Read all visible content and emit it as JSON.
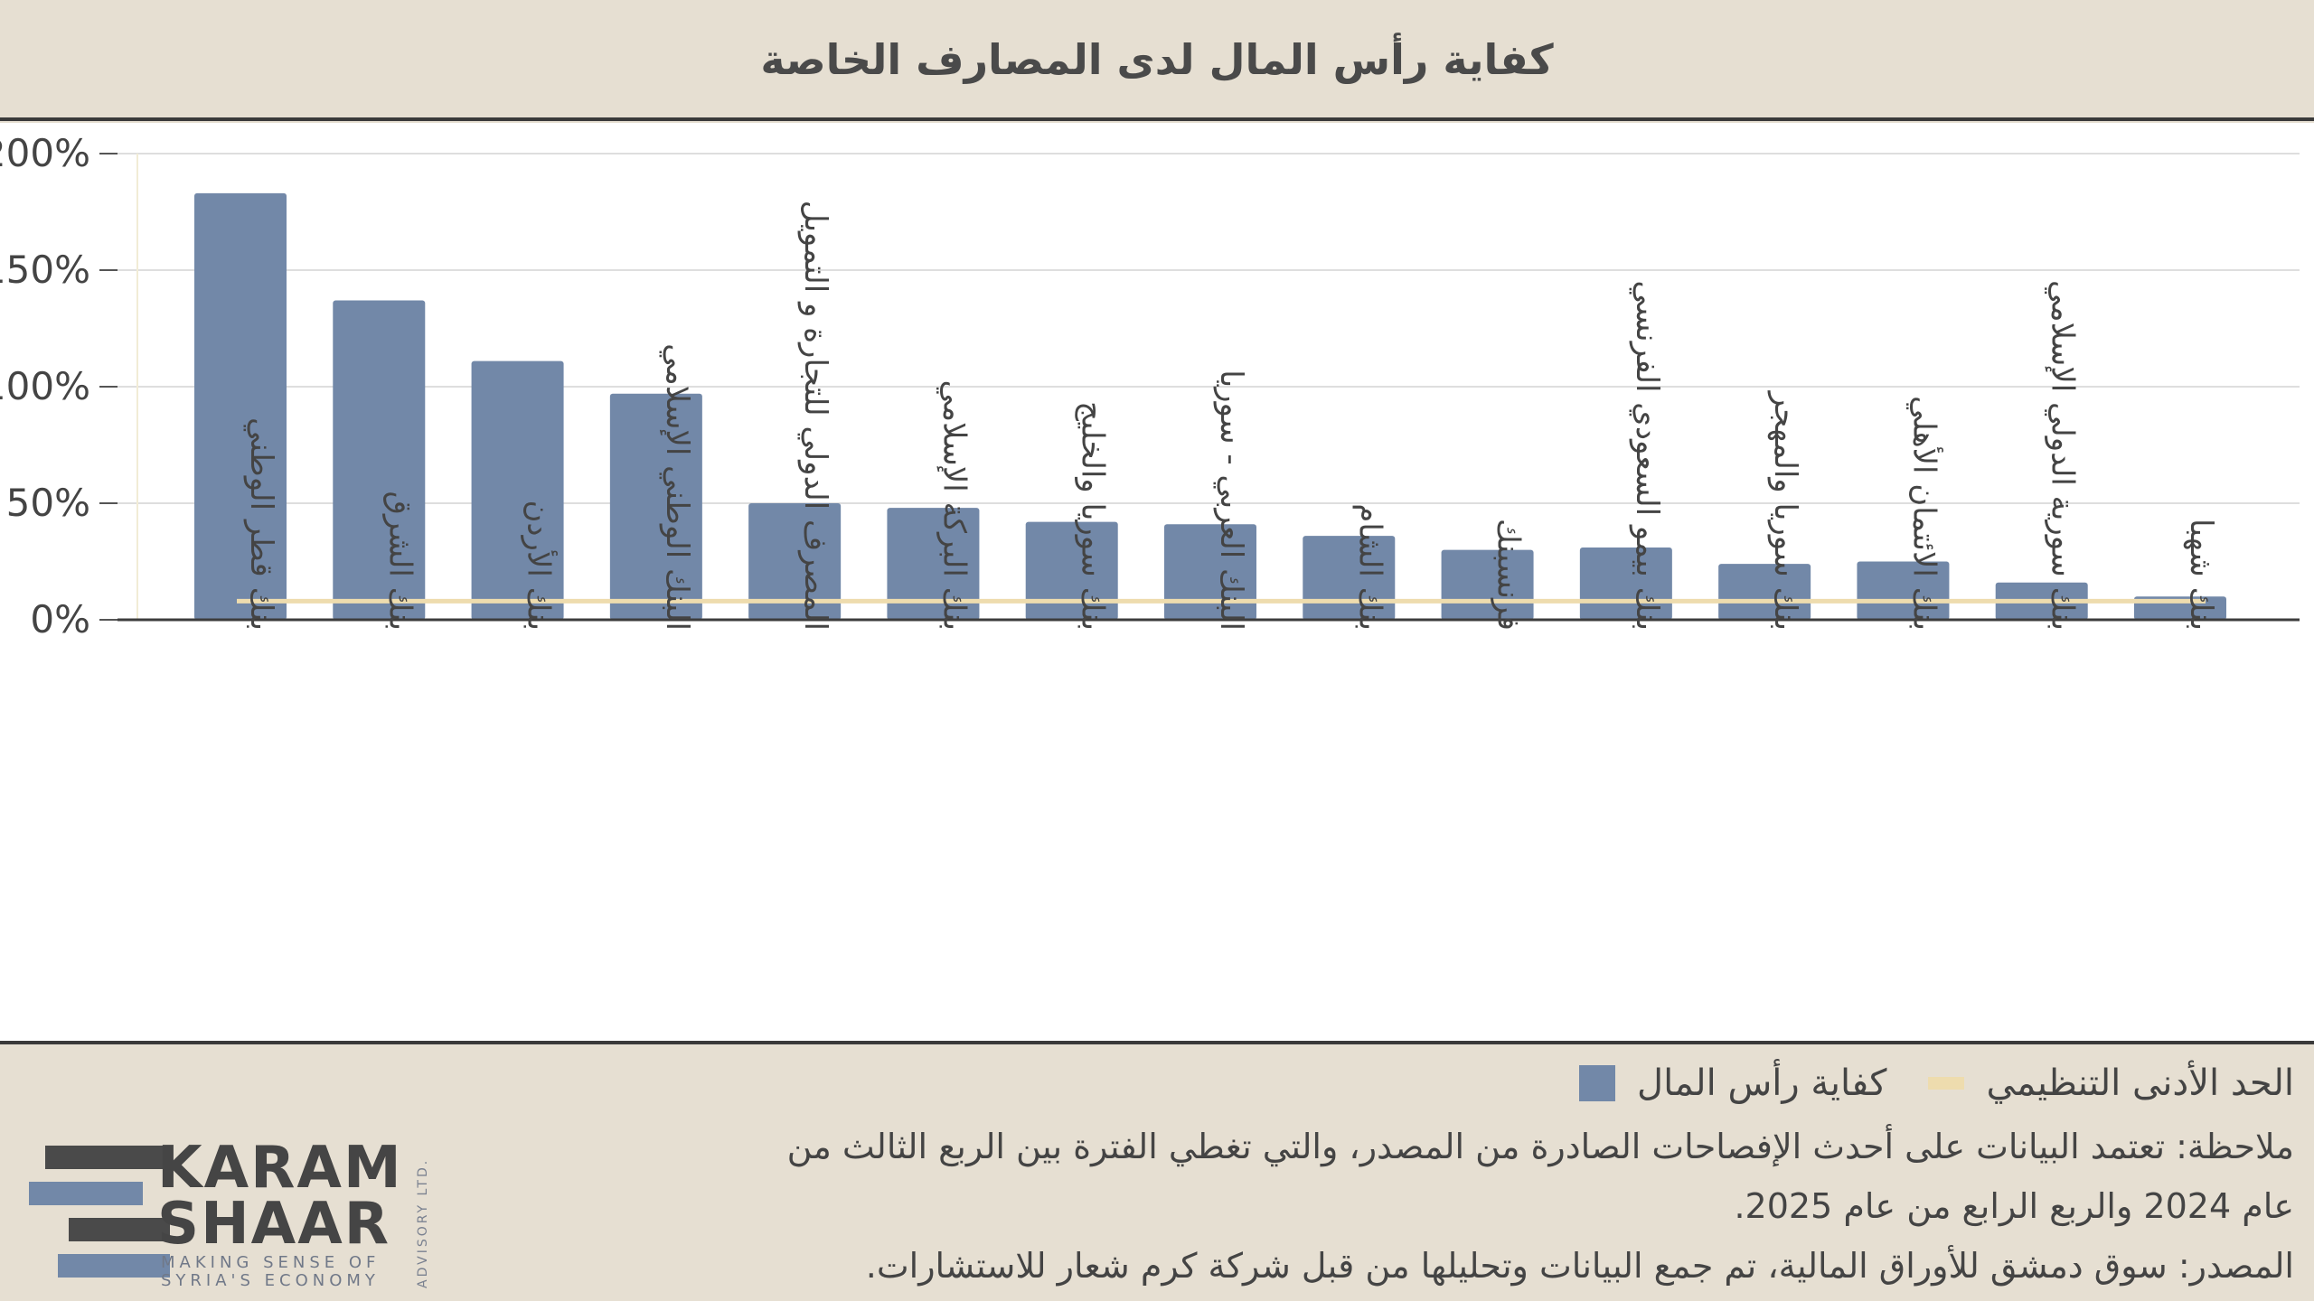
{
  "title": "كفاية رأس المال لدى المصارف الخاصة",
  "colors": {
    "bar": "#7288a8",
    "threshold": "#eedcae",
    "background": "#e6dfd2",
    "grid": "#dedede"
  },
  "chart_data": {
    "type": "bar",
    "title": "كفاية رأس المال لدى المصارف الخاصة",
    "categories": [
      "بنك قطر الوطني",
      "بنك الشرق",
      "بنك الأردن",
      "البنك الوطني الإسلامي",
      "المصرف الدولي للتجارة و التمويل",
      "بنك البركة الإسلامي",
      "بنك سوريا والخليج",
      "البنك العربي - سوريا",
      "بنك الشام",
      "فرنسبنك",
      "بنك بيمو السعودي الفرنسي",
      "بنك سوريا والمهجر",
      "بنك الائتمان الأهلي",
      "بنك سورية الدولي الإسلامي",
      "بنك شهبا"
    ],
    "series": [
      {
        "name": "كفاية رأس المال",
        "values": [
          183,
          137,
          111,
          97,
          50,
          48,
          42,
          41,
          36,
          30,
          31,
          24,
          25,
          16,
          10
        ]
      },
      {
        "name": "الحد الأدنى التنظيمي",
        "values": [
          8,
          8,
          8,
          8,
          8,
          8,
          8,
          8,
          8,
          8,
          8,
          8,
          8,
          8,
          8
        ]
      }
    ],
    "ylim": [
      0,
      200
    ],
    "yticks": [
      "0%",
      "50%",
      "100%",
      "150%",
      "200%"
    ],
    "grid": true,
    "legend": "bottom-right"
  },
  "legend": {
    "items": [
      {
        "label": "كفاية رأس المال",
        "kind": "bar"
      },
      {
        "label": "الحد الأدنى التنظيمي",
        "kind": "line"
      }
    ]
  },
  "notes": {
    "note_line1": "ملاحظة: تعتمد البيانات على أحدث الإفصاحات الصادرة من المصدر، والتي تغطي الفترة بين الربع الثالث من",
    "note_line2": "عام 2024 والربع الرابع من عام 2025.",
    "source": "المصدر: سوق دمشق للأوراق المالية، تم جمع البيانات وتحليلها من قبل شركة كرم شعار للاستشارات."
  },
  "logo": {
    "word1": "KARAM",
    "word2": "SHAAR",
    "tagline1": "MAKING SENSE OF",
    "tagline2": "SYRIA'S ECONOMY",
    "side": "ADVISORY LTD."
  }
}
